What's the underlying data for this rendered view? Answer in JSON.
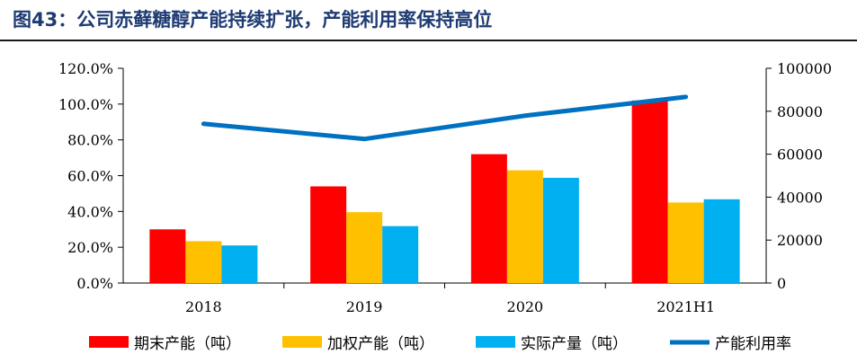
{
  "figure": {
    "title": "图43：公司赤藓糖醇产能持续扩张，产能利用率保持高位"
  },
  "chart_data": {
    "type": "bar",
    "categories": [
      "2018",
      "2019",
      "2020",
      "2021H1"
    ],
    "series": [
      {
        "name": "期末产能（吨）",
        "kind": "bar",
        "axis": "right",
        "color": "#ff0000",
        "values": [
          25000,
          45000,
          60000,
          85000
        ]
      },
      {
        "name": "加权产能（吨）",
        "kind": "bar",
        "axis": "right",
        "color": "#ffc000",
        "values": [
          19500,
          33000,
          52500,
          37500
        ]
      },
      {
        "name": "实际产量（吨）",
        "kind": "bar",
        "axis": "right",
        "color": "#00b0f0",
        "values": [
          17500,
          26500,
          49000,
          39000
        ]
      },
      {
        "name": "产能利用率",
        "kind": "line",
        "axis": "left",
        "color": "#0070c0",
        "values": [
          0.89,
          0.805,
          0.935,
          1.04
        ]
      }
    ],
    "left_axis": {
      "ylim": [
        0,
        1.2
      ],
      "tick_labels": [
        "0.0%",
        "20.0%",
        "40.0%",
        "60.0%",
        "80.0%",
        "100.0%",
        "120.0%"
      ]
    },
    "right_axis": {
      "ylim": [
        0,
        100000
      ],
      "tick_labels": [
        "0",
        "20000",
        "40000",
        "60000",
        "80000",
        "100000"
      ]
    },
    "xlabel": "",
    "ylabel": "",
    "legend": "bottom",
    "grid": false
  }
}
